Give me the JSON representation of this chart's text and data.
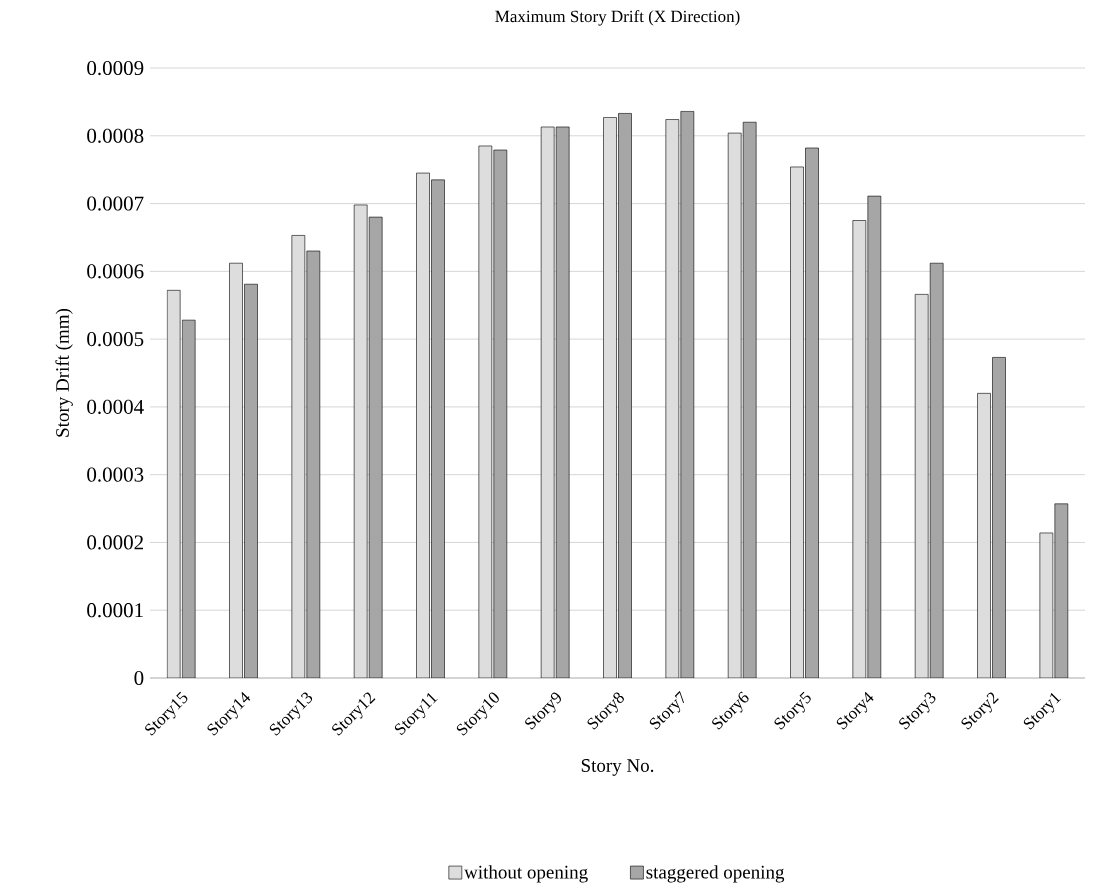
{
  "chart_data": {
    "type": "bar",
    "title": "Maximum Story Drift (X Direction)",
    "xlabel": "Story No.",
    "ylabel": "Story Drift (mm)",
    "categories": [
      "Story15",
      "Story14",
      "Story13",
      "Story12",
      "Story11",
      "Story10",
      "Story9",
      "Story8",
      "Story7",
      "Story6",
      "Story5",
      "Story4",
      "Story3",
      "Story2",
      "Story1"
    ],
    "series": [
      {
        "name": "without opening",
        "color": "#dddddd",
        "values": [
          0.000572,
          0.000612,
          0.000653,
          0.000698,
          0.000745,
          0.000785,
          0.000813,
          0.000827,
          0.000824,
          0.000804,
          0.000754,
          0.000675,
          0.000566,
          0.00042,
          0.000214
        ]
      },
      {
        "name": "staggered opening",
        "color": "#a6a6a6",
        "values": [
          0.000528,
          0.000581,
          0.00063,
          0.00068,
          0.000735,
          0.000779,
          0.000813,
          0.000833,
          0.000836,
          0.00082,
          0.000782,
          0.000711,
          0.000612,
          0.000473,
          0.000257
        ]
      }
    ],
    "ylim": [
      0,
      0.0009
    ],
    "yticks": [
      0,
      0.0001,
      0.0002,
      0.0003,
      0.0004,
      0.0005,
      0.0006,
      0.0007,
      0.0008,
      0.0009
    ],
    "grid": "y",
    "legend": "bottom"
  }
}
